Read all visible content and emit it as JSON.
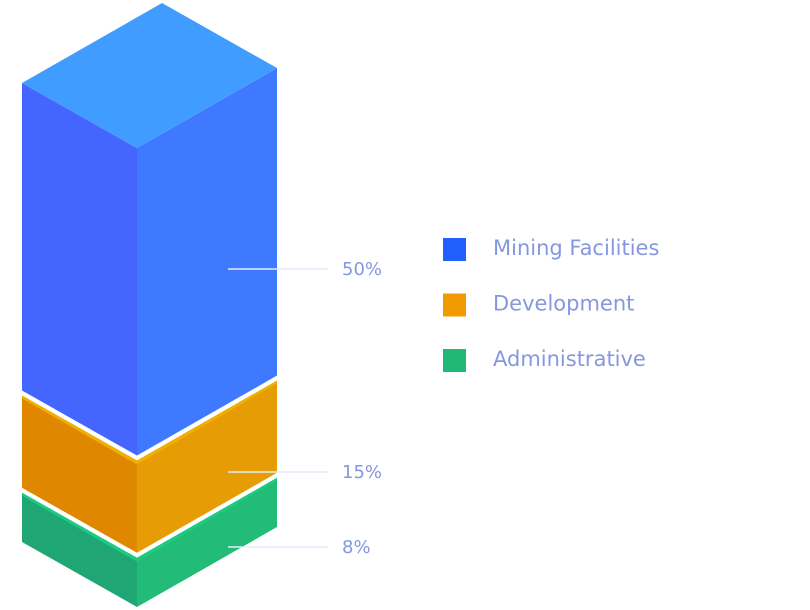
{
  "chart_data": {
    "type": "bar",
    "stacked": true,
    "style": "isometric-3d",
    "categories": [
      "Mining Facilities",
      "Development",
      "Administrative"
    ],
    "values": [
      50,
      15,
      8
    ],
    "data_labels": [
      "50%",
      "15%",
      "8%"
    ],
    "colors": {
      "Mining Facilities": {
        "legend": "#2160ff",
        "left": "#4466ff",
        "right": "#3f79ff",
        "top": "#409cff"
      },
      "Development": {
        "legend": "#f29b00",
        "left": "#e08700",
        "right": "#e69c05",
        "top": "#f0b000"
      },
      "Administrative": {
        "legend": "#21b876",
        "left": "#20a574",
        "right": "#22bb77",
        "top": "#19cc7f"
      }
    },
    "legend_position": "right",
    "title": "",
    "xlabel": "",
    "ylabel": ""
  }
}
